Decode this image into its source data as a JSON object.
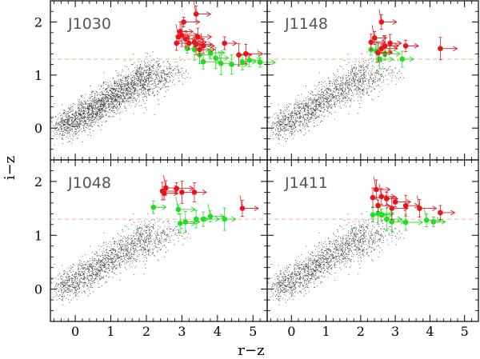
{
  "chart_data": [
    {
      "type": "scatter",
      "panel": "J1030",
      "xlabel": "r−z",
      "ylabel": "i−z",
      "xlim": [
        -0.7,
        5.4
      ],
      "ylim": [
        -0.6,
        2.4
      ],
      "threshold_line_y": 1.3,
      "red_points": [
        [
          2.85,
          1.6
        ],
        [
          2.9,
          1.72
        ],
        [
          3.0,
          1.75
        ],
        [
          2.95,
          1.82
        ],
        [
          3.1,
          1.68
        ],
        [
          3.2,
          1.6
        ],
        [
          3.35,
          1.62
        ],
        [
          3.4,
          1.58
        ],
        [
          3.45,
          1.72
        ],
        [
          3.6,
          1.55
        ],
        [
          3.5,
          1.48
        ],
        [
          4.6,
          1.38
        ],
        [
          4.8,
          1.4
        ],
        [
          3.4,
          2.15
        ],
        [
          4.2,
          1.6
        ],
        [
          3.05,
          2.0
        ]
      ],
      "green_points": [
        [
          3.15,
          1.5
        ],
        [
          3.35,
          1.48
        ],
        [
          3.5,
          1.38
        ],
        [
          3.6,
          1.25
        ],
        [
          3.8,
          1.42
        ],
        [
          4.1,
          1.22
        ],
        [
          4.4,
          1.2
        ],
        [
          4.7,
          1.25
        ],
        [
          4.9,
          1.28
        ],
        [
          5.2,
          1.24
        ],
        [
          3.95,
          1.32
        ]
      ]
    },
    {
      "type": "scatter",
      "panel": "J1148",
      "xlabel": "r−z",
      "ylabel": "i−z",
      "xlim": [
        -0.7,
        5.4
      ],
      "ylim": [
        -0.6,
        2.4
      ],
      "threshold_line_y": 1.3,
      "red_points": [
        [
          2.3,
          1.62
        ],
        [
          2.4,
          1.7
        ],
        [
          2.6,
          1.5
        ],
        [
          2.7,
          1.55
        ],
        [
          2.85,
          1.6
        ],
        [
          2.6,
          2.0
        ],
        [
          3.3,
          1.55
        ],
        [
          4.3,
          1.5
        ],
        [
          2.5,
          1.42
        ]
      ],
      "green_points": [
        [
          2.3,
          1.48
        ],
        [
          2.45,
          1.45
        ],
        [
          2.55,
          1.3
        ],
        [
          3.2,
          1.3
        ],
        [
          2.7,
          1.4
        ]
      ]
    },
    {
      "type": "scatter",
      "panel": "J1048",
      "xlabel": "r−z",
      "ylabel": "i−z",
      "xlim": [
        -0.7,
        5.4
      ],
      "ylim": [
        -0.6,
        2.4
      ],
      "threshold_line_y": 1.3,
      "red_points": [
        [
          2.45,
          1.82
        ],
        [
          2.55,
          1.88
        ],
        [
          2.85,
          1.87
        ],
        [
          3.0,
          1.8
        ],
        [
          3.35,
          1.8
        ],
        [
          4.7,
          1.5
        ],
        [
          2.5,
          1.78
        ]
      ],
      "green_points": [
        [
          2.2,
          1.52
        ],
        [
          2.9,
          1.48
        ],
        [
          3.1,
          1.25
        ],
        [
          3.4,
          1.3
        ],
        [
          3.6,
          1.3
        ],
        [
          3.8,
          1.35
        ],
        [
          4.2,
          1.3
        ],
        [
          2.95,
          1.22
        ]
      ]
    },
    {
      "type": "scatter",
      "panel": "J1411",
      "xlabel": "r−z",
      "ylabel": "i−z",
      "xlim": [
        -0.7,
        5.4
      ],
      "ylim": [
        -0.6,
        2.4
      ],
      "threshold_line_y": 1.3,
      "red_points": [
        [
          2.35,
          1.7
        ],
        [
          2.6,
          1.72
        ],
        [
          2.75,
          1.68
        ],
        [
          3.0,
          1.62
        ],
        [
          3.3,
          1.55
        ],
        [
          3.7,
          1.5
        ],
        [
          4.3,
          1.42
        ],
        [
          2.5,
          1.55
        ],
        [
          2.9,
          1.5
        ],
        [
          2.45,
          1.85
        ]
      ],
      "green_points": [
        [
          2.35,
          1.38
        ],
        [
          2.6,
          1.38
        ],
        [
          2.75,
          1.3
        ],
        [
          2.9,
          1.25
        ],
        [
          3.3,
          1.24
        ],
        [
          3.9,
          1.28
        ],
        [
          4.1,
          1.25
        ],
        [
          2.5,
          1.4
        ]
      ]
    }
  ],
  "colors": {
    "red": "#e8141c",
    "green": "#22dd22",
    "cloud": "#000000",
    "threshold": "#f2b48a"
  },
  "axes": {
    "x_ticks": [
      "0",
      "1",
      "2",
      "3",
      "4",
      "5"
    ],
    "y_ticks": [
      "0",
      "1",
      "2"
    ],
    "xlabel": "r−z",
    "ylabel": "i−z"
  }
}
